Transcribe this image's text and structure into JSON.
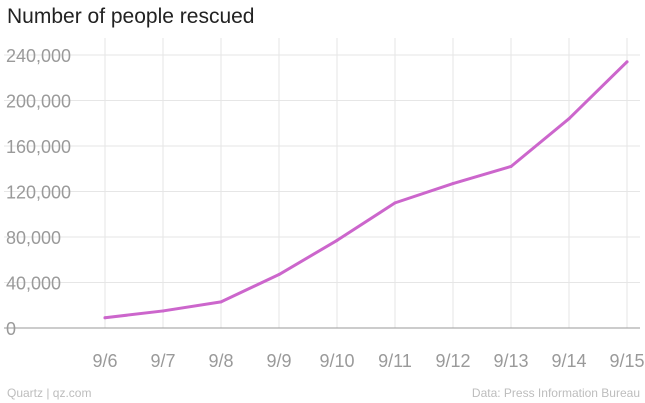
{
  "chart_data": {
    "type": "line",
    "title": "Number of people rescued",
    "xlabel": "",
    "ylabel": "",
    "categories": [
      "9/6",
      "9/7",
      "9/8",
      "9/9",
      "9/10",
      "9/11",
      "9/12",
      "9/13",
      "9/14",
      "9/15"
    ],
    "series": [
      {
        "color": "#cc66cc",
        "values": [
          9000,
          15000,
          23000,
          47000,
          77000,
          110000,
          127000,
          142000,
          184000,
          234000
        ]
      }
    ],
    "yticks": [
      "0",
      "40,000",
      "80,000",
      "120,000",
      "160,000",
      "200,000",
      "240,000"
    ],
    "ytick_values": [
      0,
      40000,
      80000,
      120000,
      160000,
      200000,
      240000
    ],
    "ylim": [
      0,
      240000
    ],
    "grid": true,
    "legend": "none"
  },
  "footer": {
    "source_left": "Quartz | qz.com",
    "source_right": "Data: Press Information Bureau"
  },
  "colors": {
    "line": "#cc66cc",
    "grid": "#e6e6e6",
    "axis": "#999999",
    "tick_text": "#9a9a9a"
  }
}
